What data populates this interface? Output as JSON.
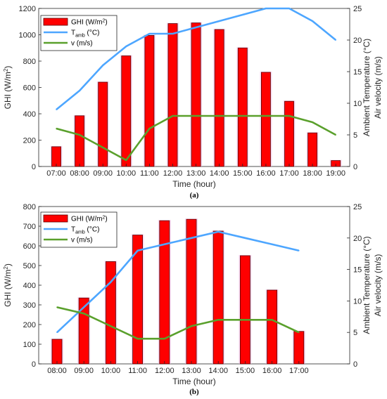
{
  "chart_data": [
    {
      "type": "bar",
      "caption": "(a)",
      "categories": [
        "07:00",
        "08:00",
        "09:00",
        "10:00",
        "11:00",
        "12:00",
        "13:00",
        "14:00",
        "15:00",
        "16:00",
        "17:00",
        "18:00",
        "19:00"
      ],
      "xlabel": "Time (hour)",
      "ylabel_left": "GHI (W/m²)",
      "ylabel_right": [
        "Ambient Temperature (°C)",
        "Air velocity (m/s)"
      ],
      "ylim_left": [
        0,
        1200
      ],
      "yticks_left": [
        0,
        200,
        400,
        600,
        800,
        1000,
        1200
      ],
      "ylim_right": [
        0,
        25
      ],
      "yticks_right": [
        0,
        5,
        10,
        15,
        20,
        25
      ],
      "legend": [
        "GHI (W/m²)",
        "Tamb (°C)",
        "v (m/s)"
      ],
      "legend_position": "top-left",
      "series": [
        {
          "name": "GHI (W/m²)",
          "kind": "bar",
          "axis": "left",
          "color": "#ff0000",
          "values": [
            150,
            385,
            640,
            840,
            995,
            1085,
            1090,
            1040,
            900,
            715,
            495,
            255,
            45
          ]
        },
        {
          "name": "Tamb (°C)",
          "kind": "line",
          "axis": "right",
          "color": "#4da6ff",
          "values": [
            9,
            12,
            16,
            19,
            21,
            21,
            22,
            23,
            24,
            25,
            25,
            23,
            20
          ]
        },
        {
          "name": "v (m/s)",
          "kind": "line",
          "axis": "right",
          "color": "#5aa02c",
          "values": [
            6,
            5,
            3,
            1,
            6,
            8,
            8,
            8,
            8,
            8,
            8,
            7,
            5
          ]
        }
      ]
    },
    {
      "type": "bar",
      "caption": "(b)",
      "categories": [
        "08:00",
        "09:00",
        "10:00",
        "11:00",
        "12:00",
        "13:00",
        "14:00",
        "15:00",
        "16:00",
        "17:00"
      ],
      "xlabel": "Time (hour)",
      "ylabel_left": "GHI (W/m²)",
      "ylabel_right": [
        "Ambient Temperature (°C)",
        "Air velocity (m/s)"
      ],
      "ylim_left": [
        0,
        800
      ],
      "yticks_left": [
        0,
        100,
        200,
        300,
        400,
        500,
        600,
        700,
        800
      ],
      "ylim_right": [
        0,
        25
      ],
      "yticks_right": [
        0,
        5,
        10,
        15,
        20,
        25
      ],
      "legend": [
        "GHI (W/m²)",
        "Tamb (°C)",
        "v (m/s)"
      ],
      "legend_position": "top-left",
      "series": [
        {
          "name": "GHI (W/m²)",
          "kind": "bar",
          "axis": "left",
          "color": "#ff0000",
          "values": [
            125,
            335,
            520,
            655,
            728,
            735,
            675,
            550,
            375,
            165
          ]
        },
        {
          "name": "Tamb (°C)",
          "kind": "line",
          "axis": "right",
          "color": "#4da6ff",
          "values": [
            5,
            9,
            13,
            18,
            19,
            20,
            21,
            20,
            19,
            18
          ]
        },
        {
          "name": "v (m/s)",
          "kind": "line",
          "axis": "right",
          "color": "#5aa02c",
          "values": [
            9,
            8,
            6,
            4,
            4,
            6,
            7,
            7,
            7,
            5
          ]
        }
      ]
    }
  ]
}
